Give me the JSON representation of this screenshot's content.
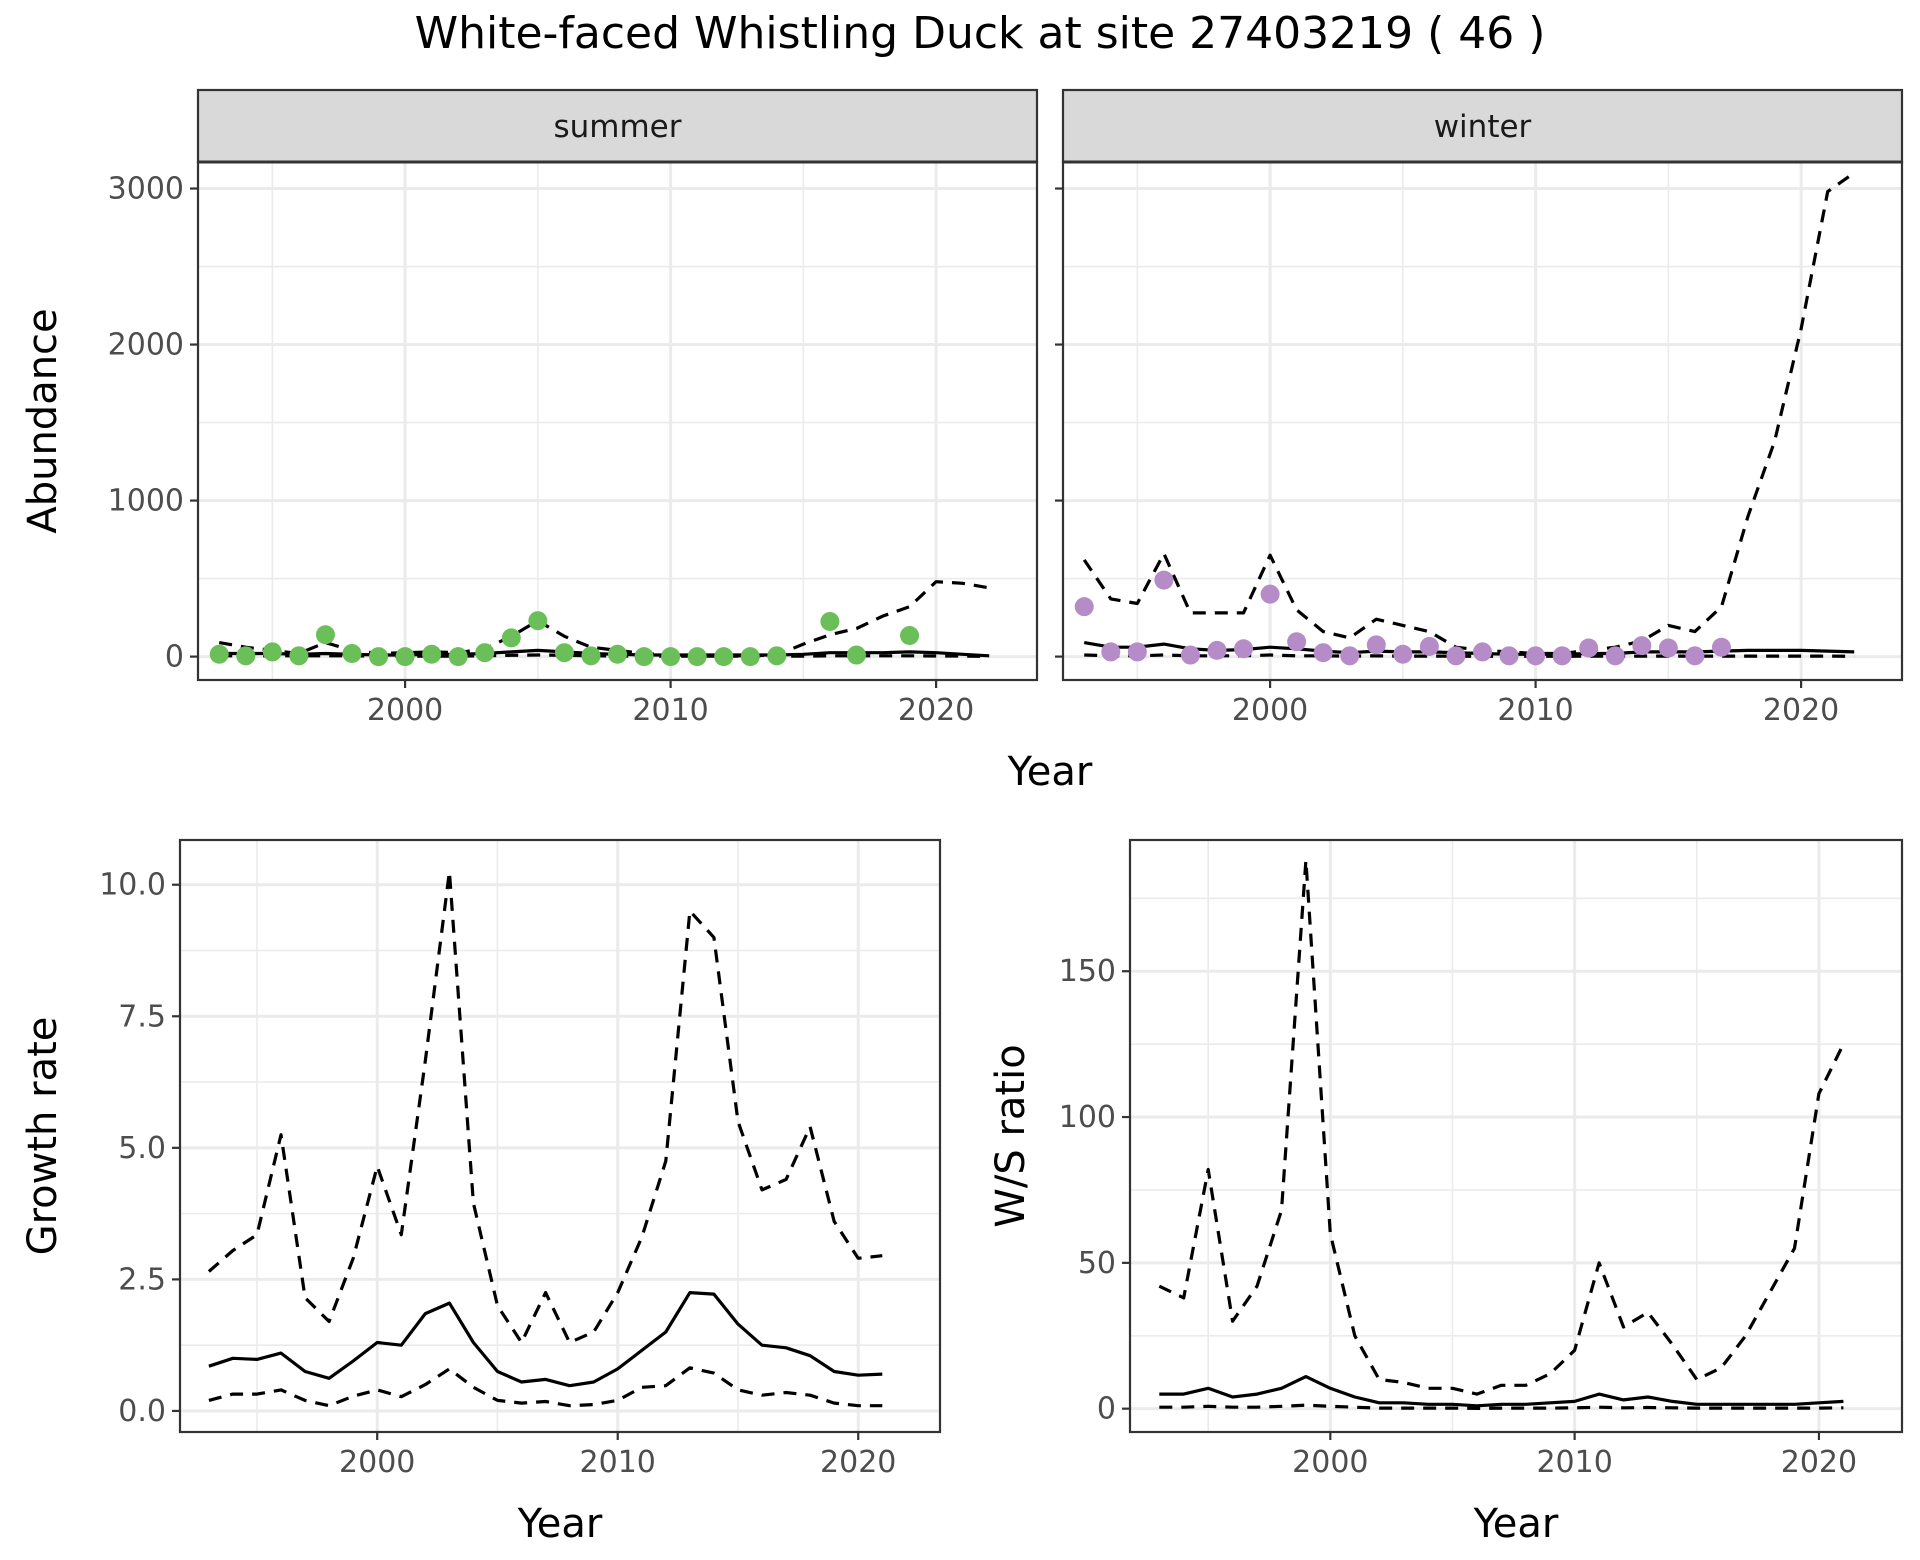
{
  "title": "White-faced Whistling Duck at site 27403219 ( 46 )",
  "colors": {
    "summer_points": "#6BBF59",
    "winter_points": "#B58CC7",
    "line": "#000000",
    "grid": "#EBEBEB",
    "strip_fill": "#D9D9D9",
    "strip_border": "#333333"
  },
  "chart_data": [
    {
      "type": "line",
      "panel": "summer",
      "strip": "summer",
      "xlabel": "Year",
      "ylabel": "Abundance",
      "xlim": [
        1992.2,
        2023.8
      ],
      "ylim": [
        -150,
        3170
      ],
      "xticks": [
        2000,
        2010,
        2020
      ],
      "yticks": [
        0,
        1000,
        2000,
        3000
      ],
      "points": {
        "x": [
          1993,
          1994,
          1995,
          1996,
          1997,
          1998,
          1999,
          2000,
          2001,
          2002,
          2003,
          2004,
          2005,
          2006,
          2007,
          2008,
          2009,
          2010,
          2011,
          2012,
          2013,
          2014,
          2016,
          2017,
          2019
        ],
        "y": [
          15,
          5,
          30,
          5,
          140,
          20,
          0,
          0,
          15,
          0,
          25,
          120,
          230,
          25,
          5,
          15,
          0,
          0,
          0,
          0,
          0,
          5,
          225,
          10,
          135
        ]
      },
      "series": [
        {
          "style": "solid",
          "x": [
            1993,
            1994,
            1995,
            1996,
            1997,
            1998,
            1999,
            2000,
            2001,
            2002,
            2003,
            2004,
            2005,
            2006,
            2007,
            2008,
            2009,
            2010,
            2011,
            2012,
            2013,
            2014,
            2015,
            2016,
            2017,
            2018,
            2019,
            2020,
            2021,
            2022
          ],
          "y": [
            20,
            20,
            20,
            15,
            20,
            15,
            10,
            10,
            15,
            15,
            20,
            30,
            40,
            30,
            20,
            15,
            10,
            10,
            10,
            10,
            10,
            10,
            15,
            25,
            25,
            25,
            30,
            25,
            15,
            5
          ]
        },
        {
          "style": "dashed",
          "x": [
            1993,
            1994,
            1995,
            1996,
            1997,
            1998,
            1999,
            2000,
            2001,
            2002,
            2003,
            2004,
            2005,
            2006,
            2007,
            2008,
            2009,
            2010,
            2011,
            2012,
            2013,
            2014,
            2015,
            2016,
            2017,
            2018,
            2019,
            2020,
            2021,
            2022
          ],
          "y": [
            90,
            60,
            40,
            20,
            90,
            40,
            20,
            25,
            30,
            25,
            50,
            130,
            230,
            130,
            60,
            40,
            20,
            10,
            5,
            5,
            5,
            10,
            80,
            140,
            180,
            260,
            320,
            480,
            470,
            440
          ]
        },
        {
          "style": "dashed",
          "x": [
            1993,
            1994,
            1995,
            1996,
            1997,
            1998,
            1999,
            2000,
            2001,
            2002,
            2003,
            2004,
            2005,
            2006,
            2007,
            2008,
            2009,
            2010,
            2011,
            2012,
            2013,
            2014,
            2015,
            2016,
            2017,
            2018,
            2019,
            2020,
            2021,
            2022
          ],
          "y": [
            5,
            5,
            5,
            5,
            5,
            5,
            3,
            3,
            3,
            3,
            5,
            8,
            10,
            8,
            5,
            4,
            3,
            3,
            3,
            3,
            3,
            3,
            3,
            5,
            5,
            5,
            5,
            4,
            3,
            1
          ]
        }
      ]
    },
    {
      "type": "line",
      "panel": "winter",
      "strip": "winter",
      "xlim": [
        1992.2,
        2023.8
      ],
      "ylim": [
        -150,
        3170
      ],
      "xticks": [
        2000,
        2010,
        2020
      ],
      "points": {
        "x": [
          1993,
          1994,
          1995,
          1996,
          1997,
          1998,
          1999,
          2000,
          2001,
          2002,
          2003,
          2004,
          2005,
          2006,
          2007,
          2008,
          2009,
          2010,
          2011,
          2012,
          2013,
          2014,
          2015,
          2016,
          2017
        ],
        "y": [
          320,
          30,
          30,
          490,
          10,
          40,
          50,
          400,
          95,
          25,
          5,
          75,
          15,
          65,
          5,
          30,
          5,
          5,
          5,
          55,
          5,
          70,
          55,
          5,
          60
        ]
      },
      "series": [
        {
          "style": "solid",
          "x": [
            1993,
            1994,
            1995,
            1996,
            1997,
            1998,
            1999,
            2000,
            2001,
            2002,
            2003,
            2004,
            2005,
            2006,
            2007,
            2008,
            2009,
            2010,
            2011,
            2012,
            2013,
            2014,
            2015,
            2016,
            2017,
            2018,
            2019,
            2020,
            2021,
            2022
          ],
          "y": [
            90,
            60,
            60,
            80,
            50,
            40,
            45,
            60,
            50,
            35,
            25,
            35,
            30,
            30,
            25,
            20,
            15,
            15,
            15,
            20,
            20,
            30,
            30,
            30,
            35,
            40,
            40,
            40,
            35,
            30
          ]
        },
        {
          "style": "dashed",
          "x": [
            1993,
            1994,
            1995,
            1996,
            1997,
            1998,
            1999,
            2000,
            2001,
            2002,
            2003,
            2004,
            2005,
            2006,
            2007,
            2008,
            2009,
            2010,
            2011,
            2012,
            2013,
            2014,
            2015,
            2016,
            2017,
            2018,
            2019,
            2020,
            2021,
            2022
          ],
          "y": [
            620,
            370,
            340,
            660,
            280,
            280,
            280,
            650,
            300,
            160,
            120,
            240,
            200,
            160,
            60,
            40,
            30,
            20,
            20,
            40,
            60,
            100,
            200,
            160,
            320,
            900,
            1380,
            2100,
            2980,
            3100
          ]
        },
        {
          "style": "dashed",
          "x": [
            1993,
            1994,
            1995,
            1996,
            1997,
            1998,
            1999,
            2000,
            2001,
            2002,
            2003,
            2004,
            2005,
            2006,
            2007,
            2008,
            2009,
            2010,
            2011,
            2012,
            2013,
            2014,
            2015,
            2016,
            2017,
            2018,
            2019,
            2020,
            2021,
            2022
          ],
          "y": [
            10,
            5,
            5,
            10,
            5,
            5,
            5,
            10,
            5,
            5,
            3,
            5,
            3,
            3,
            3,
            2,
            2,
            2,
            2,
            3,
            3,
            3,
            3,
            3,
            3,
            3,
            3,
            3,
            3,
            2
          ]
        }
      ]
    },
    {
      "type": "line",
      "panel": "growth",
      "xlabel": "Year",
      "ylabel": "Growth rate",
      "xlim": [
        1991.8,
        2023.4
      ],
      "ylim": [
        -0.4,
        10.85
      ],
      "xticks": [
        2000,
        2010,
        2020
      ],
      "yticks": [
        0.0,
        2.5,
        5.0,
        7.5,
        10.0
      ],
      "yticklabels": [
        "0.0",
        "2.5",
        "5.0",
        "7.5",
        "10.0"
      ],
      "series": [
        {
          "style": "solid",
          "x": [
            1993,
            1994,
            1995,
            1996,
            1997,
            1998,
            1999,
            2000,
            2001,
            2002,
            2003,
            2004,
            2005,
            2006,
            2007,
            2008,
            2009,
            2010,
            2011,
            2012,
            2013,
            2014,
            2015,
            2016,
            2017,
            2018,
            2019,
            2020,
            2021
          ],
          "y": [
            0.85,
            1.0,
            0.98,
            1.1,
            0.75,
            0.62,
            0.95,
            1.3,
            1.25,
            1.85,
            2.05,
            1.3,
            0.75,
            0.55,
            0.6,
            0.48,
            0.55,
            0.8,
            1.15,
            1.5,
            2.25,
            2.22,
            1.65,
            1.25,
            1.2,
            1.05,
            0.75,
            0.68,
            0.7
          ]
        },
        {
          "style": "dashed",
          "x": [
            1993,
            1994,
            1995,
            1996,
            1997,
            1998,
            1999,
            2000,
            2001,
            2002,
            2003,
            2004,
            2005,
            2006,
            2007,
            2008,
            2009,
            2010,
            2011,
            2012,
            2013,
            2014,
            2015,
            2016,
            2017,
            2018,
            2019,
            2020,
            2021
          ],
          "y": [
            2.65,
            3.05,
            3.35,
            5.25,
            2.15,
            1.7,
            2.9,
            4.65,
            3.35,
            6.65,
            10.25,
            3.95,
            2.0,
            1.3,
            2.25,
            1.3,
            1.5,
            2.25,
            3.3,
            4.75,
            9.5,
            9.0,
            5.5,
            4.2,
            4.4,
            5.4,
            3.6,
            2.9,
            2.95
          ]
        },
        {
          "style": "dashed",
          "x": [
            1993,
            1994,
            1995,
            1996,
            1997,
            1998,
            1999,
            2000,
            2001,
            2002,
            2003,
            2004,
            2005,
            2006,
            2007,
            2008,
            2009,
            2010,
            2011,
            2012,
            2013,
            2014,
            2015,
            2016,
            2017,
            2018,
            2019,
            2020,
            2021
          ],
          "y": [
            0.2,
            0.32,
            0.32,
            0.4,
            0.2,
            0.1,
            0.28,
            0.4,
            0.27,
            0.5,
            0.8,
            0.45,
            0.2,
            0.15,
            0.18,
            0.1,
            0.12,
            0.2,
            0.45,
            0.48,
            0.82,
            0.72,
            0.4,
            0.3,
            0.35,
            0.3,
            0.15,
            0.1,
            0.1
          ]
        }
      ]
    },
    {
      "type": "line",
      "panel": "ratio",
      "xlabel": "Year",
      "ylabel": "W/S ratio",
      "xlim": [
        1991.8,
        2023.4
      ],
      "ylim": [
        -8,
        195
      ],
      "xticks": [
        2000,
        2010,
        2020
      ],
      "yticks": [
        0,
        50,
        100,
        150
      ],
      "series": [
        {
          "style": "solid",
          "x": [
            1993,
            1994,
            1995,
            1996,
            1997,
            1998,
            1999,
            2000,
            2001,
            2002,
            2003,
            2004,
            2005,
            2006,
            2007,
            2008,
            2009,
            2010,
            2011,
            2012,
            2013,
            2014,
            2015,
            2016,
            2017,
            2018,
            2019,
            2020,
            2021
          ],
          "y": [
            5,
            5,
            7,
            4,
            5,
            7,
            11,
            7,
            4,
            2,
            2,
            1.5,
            1.5,
            1,
            1.5,
            1.5,
            2,
            2.5,
            5,
            3,
            4,
            2.5,
            1.5,
            1.5,
            1.5,
            1.5,
            1.5,
            2,
            2.5
          ]
        },
        {
          "style": "dashed",
          "x": [
            1993,
            1994,
            1995,
            1996,
            1997,
            1998,
            1999,
            2000,
            2001,
            2002,
            2003,
            2004,
            2005,
            2006,
            2007,
            2008,
            2009,
            2010,
            2011,
            2012,
            2013,
            2014,
            2015,
            2016,
            2017,
            2018,
            2019,
            2020,
            2021
          ],
          "y": [
            42,
            38,
            82,
            30,
            42,
            68,
            188,
            60,
            25,
            10,
            9,
            7,
            7,
            5,
            8,
            8,
            12,
            20,
            50,
            28,
            33,
            22,
            10,
            14,
            25,
            40,
            55,
            108,
            125
          ]
        },
        {
          "style": "dashed",
          "x": [
            1993,
            1994,
            1995,
            1996,
            1997,
            1998,
            1999,
            2000,
            2001,
            2002,
            2003,
            2004,
            2005,
            2006,
            2007,
            2008,
            2009,
            2010,
            2011,
            2012,
            2013,
            2014,
            2015,
            2016,
            2017,
            2018,
            2019,
            2020,
            2021
          ],
          "y": [
            0.5,
            0.5,
            0.8,
            0.5,
            0.5,
            0.8,
            1.2,
            0.8,
            0.5,
            0.2,
            0.2,
            0.2,
            0.2,
            0.1,
            0.2,
            0.2,
            0.2,
            0.3,
            0.5,
            0.3,
            0.4,
            0.3,
            0.2,
            0.2,
            0.2,
            0.2,
            0.2,
            0.2,
            0.3
          ]
        }
      ]
    }
  ]
}
